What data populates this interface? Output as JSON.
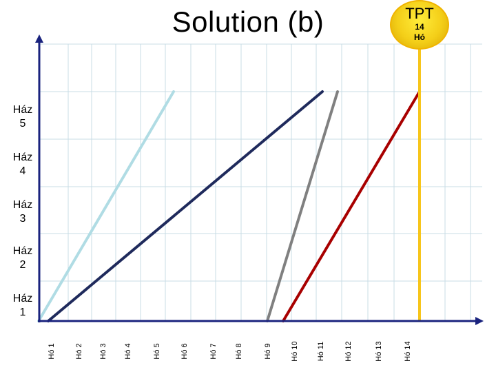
{
  "title": "Solution (b)",
  "badge": {
    "line1": "TPT",
    "line2": "14",
    "line3": "Hó"
  },
  "y_labels": [
    {
      "l1": "Ház",
      "l2": "5"
    },
    {
      "l1": "Ház",
      "l2": "4"
    },
    {
      "l1": "Ház",
      "l2": "3"
    },
    {
      "l1": "Ház",
      "l2": "2"
    },
    {
      "l1": "Ház",
      "l2": "1"
    }
  ],
  "x_labels": [
    "Hó 1",
    "Hó 2",
    "Hó 3",
    "Hó 4",
    "Hó 5",
    "Hó 6",
    "Hó 7",
    "Hó 8",
    "Hó 9",
    "Hó 10",
    "Hó 11",
    "Hó 12",
    "Hó 13",
    "Hó 14"
  ],
  "colors": {
    "axis": "#1a237e",
    "grid": "#c8dce6",
    "light_blue": "#b0dce4",
    "navy": "#1f2a5c",
    "gray": "#808080",
    "red": "#a80000",
    "tpt_line": "#f7c51a"
  }
}
